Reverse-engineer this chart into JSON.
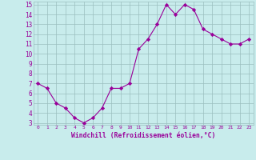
{
  "x": [
    0,
    1,
    2,
    3,
    4,
    5,
    6,
    7,
    8,
    9,
    10,
    11,
    12,
    13,
    14,
    15,
    16,
    17,
    18,
    19,
    20,
    21,
    22,
    23
  ],
  "y": [
    7,
    6.5,
    5,
    4.5,
    3.5,
    3,
    3.5,
    4.5,
    6.5,
    6.5,
    7,
    10.5,
    11.5,
    13,
    15,
    14,
    15,
    14.5,
    12.5,
    12,
    11.5,
    11,
    11,
    11.5
  ],
  "line_color": "#990099",
  "marker": "D",
  "marker_size": 2.2,
  "bg_color": "#c8ecec",
  "grid_color": "#9bbfbf",
  "xlabel": "Windchill (Refroidissement éolien,°C)",
  "xlabel_color": "#990099",
  "tick_color": "#990099",
  "ylim": [
    3,
    15
  ],
  "yticks": [
    3,
    4,
    5,
    6,
    7,
    8,
    9,
    10,
    11,
    12,
    13,
    14,
    15
  ],
  "xticks": [
    0,
    1,
    2,
    3,
    4,
    5,
    6,
    7,
    8,
    9,
    10,
    11,
    12,
    13,
    14,
    15,
    16,
    17,
    18,
    19,
    20,
    21,
    22,
    23
  ]
}
